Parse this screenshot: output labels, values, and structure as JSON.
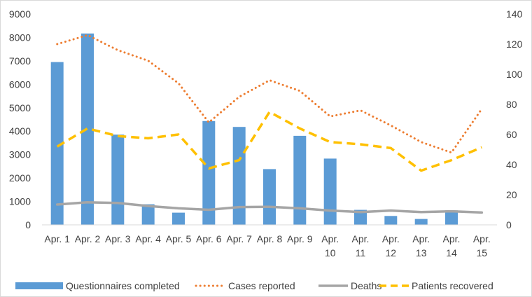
{
  "chart_data": {
    "type": "bar+line",
    "title": "",
    "categories": [
      "Apr. 1",
      "Apr. 2",
      "Apr. 3",
      "Apr. 4",
      "Apr. 5",
      "Apr. 6",
      "Apr. 7",
      "Apr. 8",
      "Apr. 9",
      "Apr. 10",
      "Apr. 11",
      "Apr. 12",
      "Apr. 13",
      "Apr. 14",
      "Apr. 15"
    ],
    "category_lines": [
      [
        "Apr. 1"
      ],
      [
        "Apr. 2"
      ],
      [
        "Apr. 3"
      ],
      [
        "Apr. 4"
      ],
      [
        "Apr. 5"
      ],
      [
        "Apr. 6"
      ],
      [
        "Apr. 7"
      ],
      [
        "Apr. 8"
      ],
      [
        "Apr. 9"
      ],
      [
        "Apr.",
        "10"
      ],
      [
        "Apr.",
        "11"
      ],
      [
        "Apr.",
        "12"
      ],
      [
        "Apr.",
        "13"
      ],
      [
        "Apr.",
        "14"
      ],
      [
        "Apr.",
        "15"
      ]
    ],
    "left_axis": {
      "min": 0,
      "max": 9000,
      "ticks": [
        0,
        1000,
        2000,
        3000,
        4000,
        5000,
        6000,
        7000,
        8000,
        9000
      ]
    },
    "right_axis": {
      "min": 0,
      "max": 140,
      "ticks": [
        0,
        20,
        40,
        60,
        80,
        100,
        120,
        140
      ]
    },
    "series": [
      {
        "name": "Questionnaires completed",
        "kind": "bar",
        "axis": "left",
        "color": "#5b9bd5",
        "values": [
          6950,
          8170,
          3850,
          880,
          520,
          4430,
          4180,
          2380,
          3800,
          2830,
          640,
          380,
          250,
          620,
          null
        ]
      },
      {
        "name": "Cases reported",
        "kind": "line",
        "style": "dotted",
        "axis": "right",
        "color": "#ed7d31",
        "values": [
          120,
          126,
          116,
          109,
          94,
          68,
          85,
          96,
          89,
          72,
          76,
          66,
          55,
          48,
          77
        ]
      },
      {
        "name": "Deaths",
        "kind": "line",
        "style": "solid",
        "axis": "right",
        "color": "#a5a5a5",
        "values": [
          13.5,
          15,
          14.5,
          12.5,
          11,
          10,
          11.8,
          12,
          11,
          9.5,
          8.5,
          9.5,
          8.5,
          9,
          8.2
        ]
      },
      {
        "name": "Patients recovered",
        "kind": "line",
        "style": "dashed",
        "axis": "right",
        "color": "#ffc000",
        "values": [
          52,
          64,
          59,
          57.5,
          60,
          37.5,
          43,
          75,
          64,
          55,
          53.5,
          51,
          36,
          43,
          51.5
        ]
      }
    ],
    "legend": {
      "position": "bottom"
    },
    "grid": false
  }
}
